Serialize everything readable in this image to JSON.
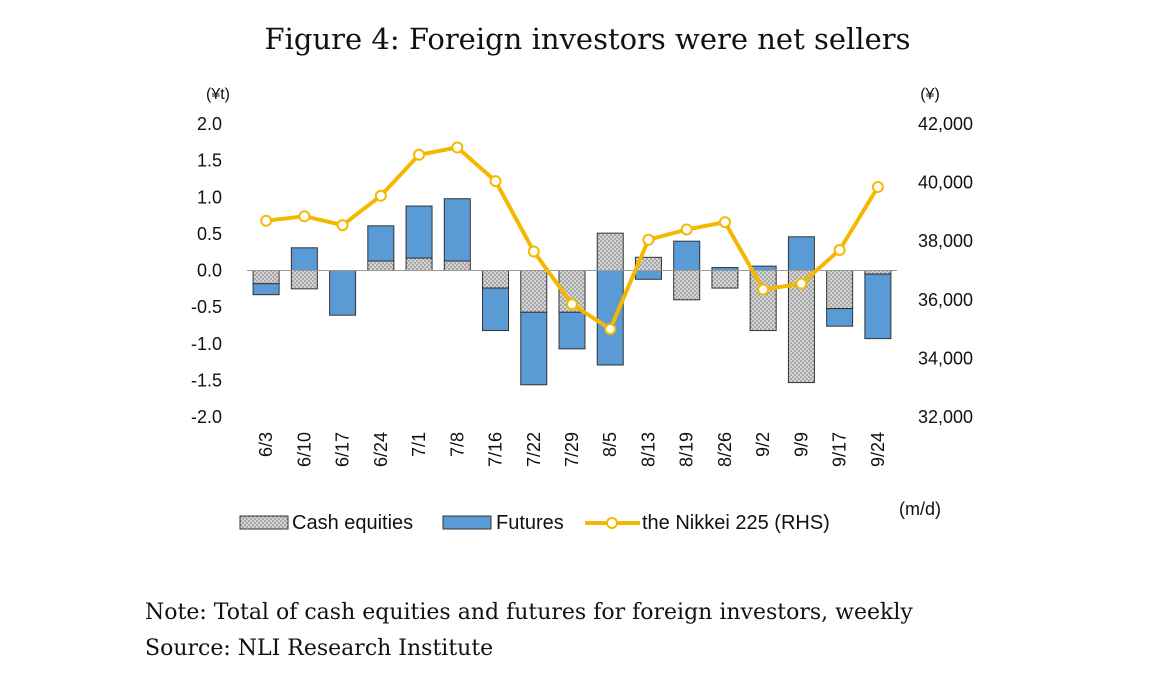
{
  "figure": {
    "title": "Figure 4: Foreign investors were net sellers",
    "note": "Note: Total of cash equities and futures for foreign investors, weekly",
    "source": "Source: NLI Research Institute"
  },
  "chart_data": {
    "type": "bar",
    "title": "Figure 4: Foreign investors were net sellers",
    "left_unit": "(¥t)",
    "right_unit": "(¥)",
    "x_unit": "(m/d)",
    "categories": [
      "6/3",
      "6/10",
      "6/17",
      "6/24",
      "7/1",
      "7/8",
      "7/16",
      "7/22",
      "7/29",
      "8/5",
      "8/13",
      "8/19",
      "8/26",
      "9/2",
      "9/9",
      "9/17",
      "9/24"
    ],
    "left_ticks": [
      "2.0",
      "1.5",
      "1.0",
      "0.5",
      "0.0",
      "-0.5",
      "-1.0",
      "-1.5",
      "-2.0"
    ],
    "right_ticks": [
      "42,000",
      "40,000",
      "38,000",
      "36,000",
      "34,000",
      "32,000"
    ],
    "ylim_left": [
      -2.0,
      2.0
    ],
    "ylim_right": [
      32000,
      42000
    ],
    "stacked": true,
    "series": [
      {
        "name": "Cash equities",
        "kind": "bar",
        "axis": "left",
        "color": "#bdbdbd",
        "values": [
          -0.18,
          -0.25,
          0.0,
          0.13,
          0.17,
          0.13,
          -0.24,
          -0.57,
          -0.57,
          0.51,
          0.18,
          -0.4,
          -0.24,
          -0.82,
          -1.53,
          -0.52,
          -0.05
        ]
      },
      {
        "name": "Futures",
        "kind": "bar",
        "axis": "left",
        "color": "#5b9bd5",
        "values": [
          -0.15,
          0.31,
          -0.61,
          0.48,
          0.71,
          0.85,
          -0.58,
          -0.99,
          -0.5,
          -1.29,
          -0.12,
          0.4,
          0.04,
          0.06,
          0.46,
          -0.24,
          -0.88
        ]
      },
      {
        "name": "the Nikkei 225 (RHS)",
        "kind": "line",
        "axis": "right",
        "color": "#f5b800",
        "values": [
          38700,
          38850,
          38550,
          39550,
          40950,
          41200,
          40050,
          37650,
          35850,
          35000,
          38050,
          38400,
          38650,
          36350,
          36550,
          37700,
          39850
        ]
      }
    ],
    "legend_position": "bottom",
    "grid": false
  }
}
